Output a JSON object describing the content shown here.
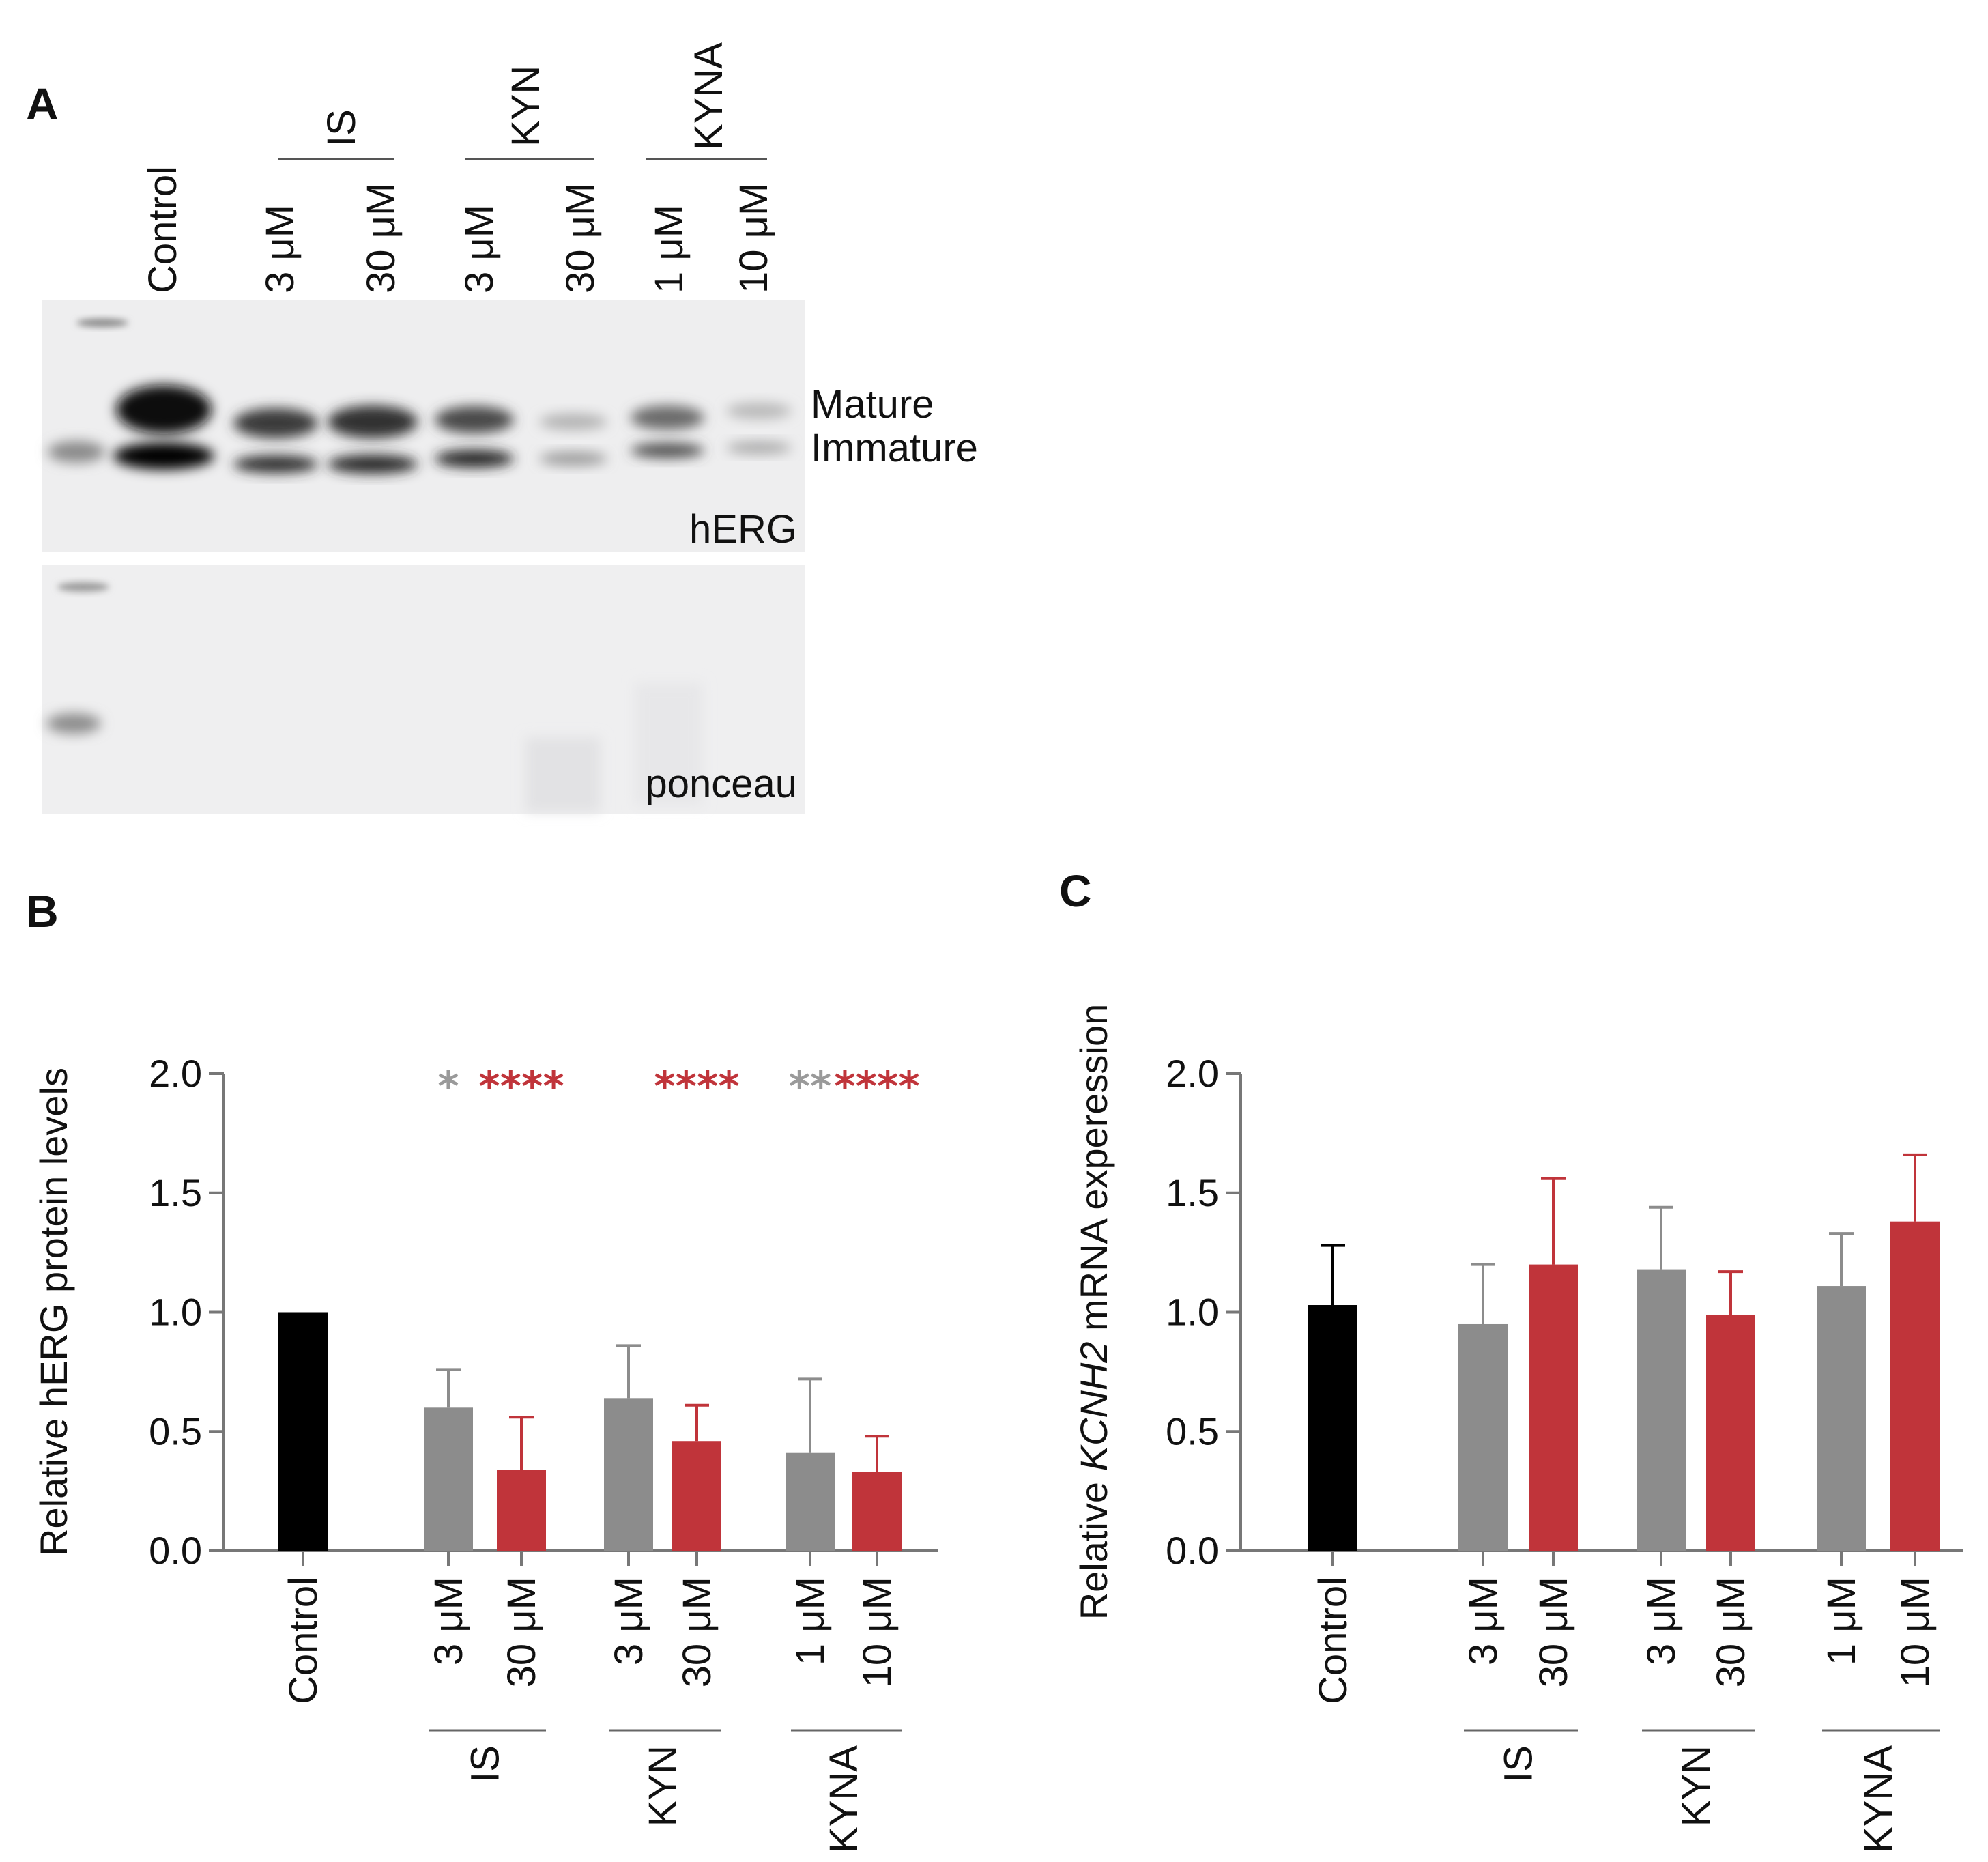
{
  "colors": {
    "control": "#000000",
    "low_dose": "#8c8c8c",
    "high_dose": "#c0343a",
    "sig_gray": "#9a9a9a",
    "sig_red": "#c0343a",
    "axis": "#777777"
  },
  "panelA": {
    "letter": "A",
    "control_label": "Control",
    "groups": [
      {
        "name": "IS",
        "doses": [
          "3 μM",
          "30 μM"
        ]
      },
      {
        "name": "KYN",
        "doses": [
          "3 μM",
          "30 μM"
        ]
      },
      {
        "name": "KYNA",
        "doses": [
          "1 μM",
          "10 μM"
        ]
      }
    ],
    "band_labels": {
      "mature": "Mature",
      "immature": "Immature"
    },
    "blot_labels": {
      "top": "hERG",
      "bottom": "ponceau"
    }
  },
  "chart_data": [
    {
      "panel": "B",
      "type": "bar",
      "ylabel": "Relative hERG protein levels",
      "ylim": [
        0,
        2.0
      ],
      "yticks": [
        "0.0",
        "0.5",
        "1.0",
        "1.5",
        "2.0"
      ],
      "categories": [
        "Control",
        "3 μM",
        "30 μM",
        "3 μM",
        "30 μM",
        "1 μM",
        "10 μM"
      ],
      "groups": [
        "IS",
        "KYN",
        "KYNA"
      ],
      "values": [
        1.0,
        0.6,
        0.34,
        0.64,
        0.46,
        0.41,
        0.33
      ],
      "errors": [
        0.0,
        0.16,
        0.22,
        0.22,
        0.15,
        0.31,
        0.15
      ],
      "significance": [
        "",
        "*",
        "****",
        "",
        "****",
        "**",
        "****"
      ]
    },
    {
      "panel": "C",
      "type": "bar",
      "ylabel_prefix": "Relative",
      "ylabel_gene": "KCNH2",
      "ylabel_suffix": "mRNA experession",
      "ylim": [
        0,
        2.0
      ],
      "yticks": [
        "0.0",
        "0.5",
        "1.0",
        "1.5",
        "2.0"
      ],
      "categories": [
        "Control",
        "3 μM",
        "30 μM",
        "3 μM",
        "30 μM",
        "1 μM",
        "10 μM"
      ],
      "groups": [
        "IS",
        "KYN",
        "KYNA"
      ],
      "values": [
        1.03,
        0.95,
        1.2,
        1.18,
        0.99,
        1.11,
        1.38
      ],
      "errors": [
        0.25,
        0.25,
        0.36,
        0.26,
        0.18,
        0.22,
        0.28
      ]
    }
  ]
}
